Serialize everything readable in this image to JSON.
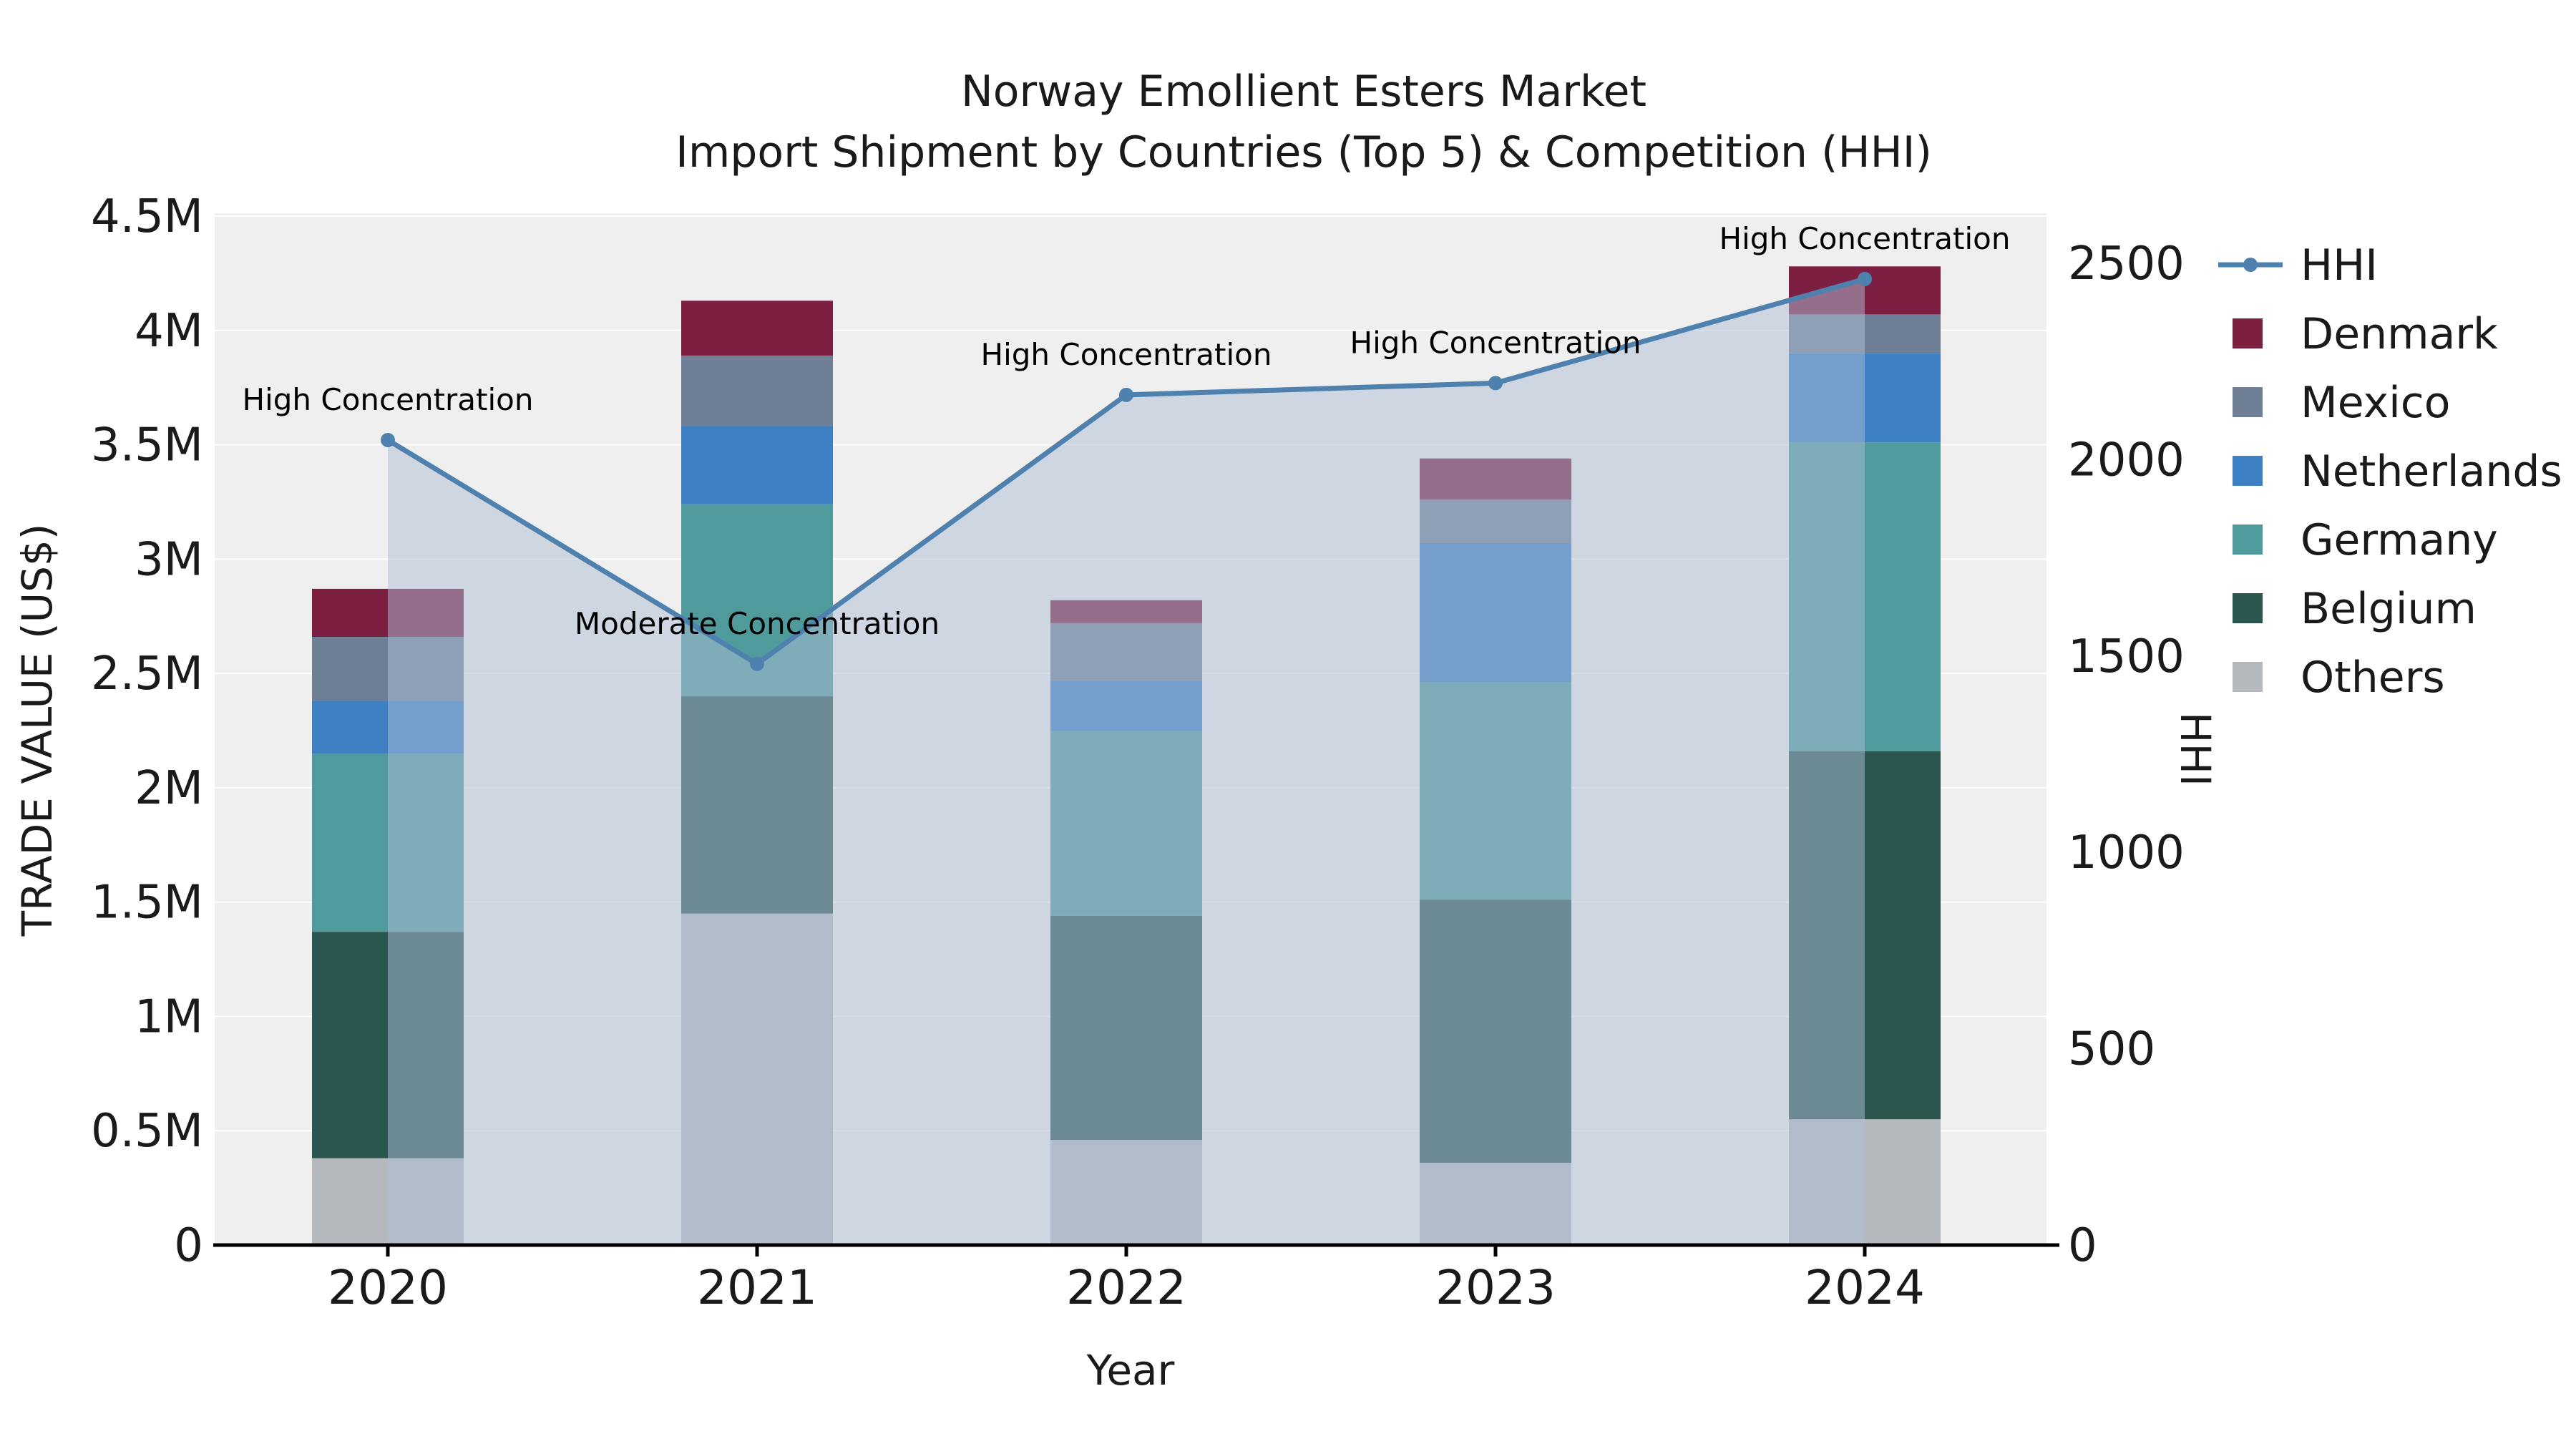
{
  "chart_data": {
    "type": "bar",
    "subtype": "stacked-bar-with-line-area-overlay",
    "title": "Norway Emollient Esters Market",
    "subtitle": "Import Shipment by Countries (Top 5) & Competition (HHI)",
    "xlabel": "Year",
    "ylabel_left": "TRADE VALUE (US$)",
    "ylabel_right": "HHI",
    "categories": [
      "2020",
      "2021",
      "2022",
      "2023",
      "2024"
    ],
    "values_unit": "millions USD",
    "stack_order_bottom_to_top": [
      "Others",
      "Belgium",
      "Germany",
      "Netherlands",
      "Mexico",
      "Denmark"
    ],
    "series": [
      {
        "name": "Denmark",
        "color": "#7d1f41",
        "values": [
          0.21,
          0.24,
          0.1,
          0.18,
          0.21
        ]
      },
      {
        "name": "Mexico",
        "color": "#6f8096",
        "values": [
          0.28,
          0.31,
          0.25,
          0.19,
          0.17
        ]
      },
      {
        "name": "Netherlands",
        "color": "#3d80c4",
        "values": [
          0.23,
          0.34,
          0.22,
          0.61,
          0.39
        ]
      },
      {
        "name": "Germany",
        "color": "#4f9b9b",
        "values": [
          0.78,
          0.84,
          0.81,
          0.95,
          1.35
        ]
      },
      {
        "name": "Belgium",
        "color": "#2b5650",
        "values": [
          0.99,
          0.95,
          0.98,
          1.15,
          1.61
        ]
      },
      {
        "name": "Others",
        "color": "#b5b9bd",
        "values": [
          0.38,
          1.45,
          0.46,
          0.36,
          0.55
        ]
      }
    ],
    "bar_totals": [
      2.87,
      4.13,
      2.82,
      3.44,
      4.28
    ],
    "hhi": {
      "name": "HHI",
      "color": "#4e81ae",
      "fill": "rgba(174,190,214,0.5)",
      "values": [
        2050,
        1480,
        2165,
        2195,
        2460
      ]
    },
    "annotations": [
      {
        "year": "2020",
        "text": "High Concentration"
      },
      {
        "year": "2021",
        "text": "Moderate Concentration"
      },
      {
        "year": "2022",
        "text": "High Concentration"
      },
      {
        "year": "2023",
        "text": "High Concentration"
      },
      {
        "year": "2024",
        "text": "High Concentration"
      }
    ],
    "left_axis": {
      "ticks": [
        "0",
        "0.5M",
        "1M",
        "1.5M",
        "2M",
        "2.5M",
        "3M",
        "3.5M",
        "4M",
        "4.5M"
      ],
      "tick_values": [
        0,
        0.5,
        1,
        1.5,
        2,
        2.5,
        3,
        3.5,
        4,
        4.5
      ],
      "range": [
        0,
        4.5
      ]
    },
    "right_axis": {
      "ticks": [
        "0",
        "500",
        "1000",
        "1500",
        "2000",
        "2500"
      ],
      "tick_values": [
        0,
        500,
        1000,
        1500,
        2000,
        2500
      ]
    },
    "legend": [
      "HHI",
      "Denmark",
      "Mexico",
      "Netherlands",
      "Germany",
      "Belgium",
      "Others"
    ],
    "plot_background": "#efefef",
    "grid": "on"
  }
}
